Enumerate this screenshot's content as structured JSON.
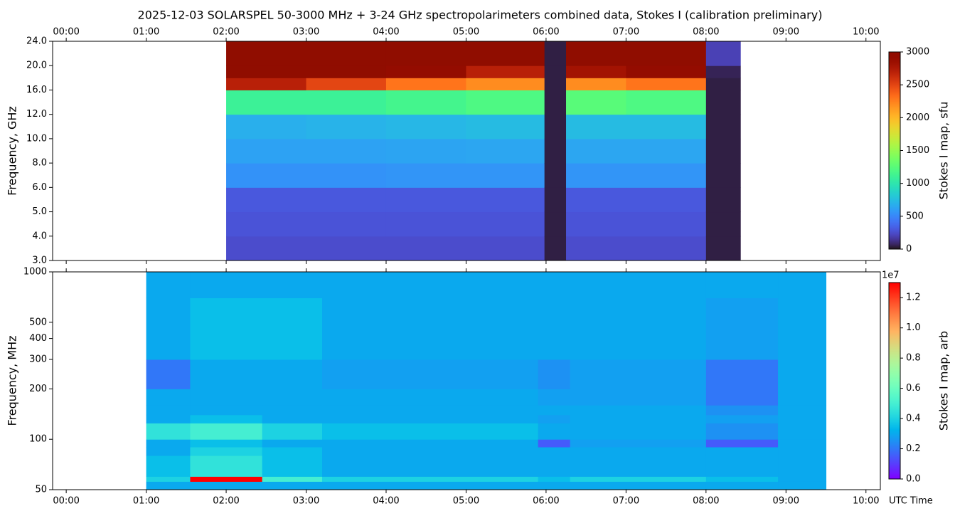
{
  "chart_data": [
    {
      "type": "heatmap",
      "title": "2025-12-03  SOLARSPEL  50-3000 MHz  +  3-24 GHz  spectropolarimeters combined data,  Stokes I  (calibration preliminary)",
      "ylabel": "Frequency, GHz",
      "colormap": "turbo",
      "yscale": "index",
      "xtick_position": "top",
      "x_edges": [
        2.0,
        3.0,
        4.0,
        5.0,
        5.98,
        6.25,
        7.0,
        8.0,
        8.43
      ],
      "y_edges": [
        3,
        4,
        5,
        6,
        8,
        10,
        12,
        16,
        18,
        20,
        24
      ],
      "values": [
        [
          250,
          280,
          300,
          550,
          620,
          680,
          1100,
          2700,
          3000,
          3000
        ],
        [
          250,
          280,
          300,
          550,
          620,
          700,
          1100,
          2500,
          3000,
          3000
        ],
        [
          250,
          280,
          300,
          560,
          630,
          720,
          1150,
          2300,
          2900,
          3000
        ],
        [
          250,
          280,
          300,
          560,
          640,
          740,
          1200,
          2200,
          2700,
          3000
        ],
        [
          40,
          40,
          40,
          40,
          40,
          40,
          40,
          40,
          40,
          40
        ],
        [
          250,
          280,
          300,
          560,
          640,
          740,
          1250,
          2200,
          2800,
          3000
        ],
        [
          250,
          280,
          300,
          560,
          640,
          740,
          1200,
          2300,
          2900,
          3000
        ],
        [
          40,
          40,
          40,
          40,
          40,
          40,
          40,
          40,
          60,
          200
        ]
      ],
      "xlim": [
        -0.17,
        10.18
      ],
      "xticks": [
        {
          "value": 0,
          "label": "00:00"
        },
        {
          "value": 1,
          "label": "01:00"
        },
        {
          "value": 2,
          "label": "02:00"
        },
        {
          "value": 3,
          "label": "03:00"
        },
        {
          "value": 4,
          "label": "04:00"
        },
        {
          "value": 5,
          "label": "05:00"
        },
        {
          "value": 6,
          "label": "06:00"
        },
        {
          "value": 7,
          "label": "07:00"
        },
        {
          "value": 8,
          "label": "08:00"
        },
        {
          "value": 9,
          "label": "09:00"
        },
        {
          "value": 10,
          "label": "10:00"
        }
      ],
      "ylim": [
        3,
        24
      ],
      "yticks": [
        {
          "value": 3,
          "label": "3.0"
        },
        {
          "value": 4,
          "label": "4.0"
        },
        {
          "value": 5,
          "label": "5.0"
        },
        {
          "value": 6,
          "label": "6.0"
        },
        {
          "value": 8,
          "label": "8.0"
        },
        {
          "value": 10,
          "label": "10.0"
        },
        {
          "value": 12,
          "label": "12.0"
        },
        {
          "value": 16,
          "label": "16.0"
        },
        {
          "value": 20,
          "label": "20.0"
        },
        {
          "value": 24,
          "label": "24.0"
        }
      ],
      "colorbar": {
        "label": "Stokes I map, sfu",
        "lim": [
          0,
          3000
        ],
        "ticks": [
          0,
          500,
          1000,
          1500,
          2000,
          2500,
          3000
        ]
      }
    },
    {
      "type": "heatmap",
      "ylabel": "Frequency, MHz",
      "xlabel": "UTC Time",
      "colormap": "rainbow",
      "yscale": "log",
      "xtick_position": "bottom",
      "x_edges": [
        1.0,
        1.55,
        2.45,
        3.2,
        5.9,
        6.3,
        8.0,
        8.9,
        9.5
      ],
      "y_edges": [
        50,
        56,
        60,
        80,
        90,
        100,
        125,
        140,
        160,
        200,
        300,
        700,
        1000
      ],
      "values": [
        [
          0.3,
          0.4,
          0.35,
          0.3,
          0.3,
          0.45,
          0.3,
          0.3,
          0.3,
          0.2,
          0.3,
          0.3
        ],
        [
          0.3,
          1.3,
          0.45,
          0.4,
          0.35,
          0.5,
          0.35,
          0.3,
          0.3,
          0.3,
          0.35,
          0.3
        ],
        [
          0.3,
          0.5,
          0.35,
          0.35,
          0.3,
          0.4,
          0.3,
          0.3,
          0.3,
          0.3,
          0.35,
          0.3
        ],
        [
          0.3,
          0.4,
          0.3,
          0.3,
          0.3,
          0.35,
          0.3,
          0.3,
          0.3,
          0.28,
          0.3,
          0.3
        ],
        [
          0.3,
          0.35,
          0.3,
          0.3,
          0.15,
          0.3,
          0.28,
          0.3,
          0.28,
          0.25,
          0.3,
          0.3
        ],
        [
          0.3,
          0.4,
          0.3,
          0.3,
          0.28,
          0.3,
          0.3,
          0.3,
          0.28,
          0.28,
          0.3,
          0.3
        ],
        [
          0.3,
          0.35,
          0.3,
          0.3,
          0.15,
          0.25,
          0.28,
          0.25,
          0.2,
          0.2,
          0.28,
          0.3
        ],
        [
          0.3,
          0.3,
          0.3,
          0.3,
          0.3,
          0.3,
          0.3,
          0.3,
          0.3,
          0.3,
          0.3,
          0.3
        ]
      ],
      "xlim": [
        -0.17,
        10.18
      ],
      "xticks": [
        {
          "value": 0,
          "label": "00:00"
        },
        {
          "value": 1,
          "label": "01:00"
        },
        {
          "value": 2,
          "label": "02:00"
        },
        {
          "value": 3,
          "label": "03:00"
        },
        {
          "value": 4,
          "label": "04:00"
        },
        {
          "value": 5,
          "label": "05:00"
        },
        {
          "value": 6,
          "label": "06:00"
        },
        {
          "value": 7,
          "label": "07:00"
        },
        {
          "value": 8,
          "label": "08:00"
        },
        {
          "value": 9,
          "label": "09:00"
        },
        {
          "value": 10,
          "label": "10:00"
        }
      ],
      "ylim": [
        50,
        1000
      ],
      "yticks": [
        50,
        100,
        200,
        300,
        400,
        500,
        1000
      ],
      "colorbar": {
        "label": "Stokes I map, arb",
        "offset_label": "1e7",
        "lim": [
          0,
          1.3
        ],
        "ticks": [
          {
            "value": 0,
            "label": "0.0"
          },
          0.2,
          0.4,
          0.6,
          0.8,
          {
            "value": 1,
            "label": "1.0"
          },
          1.2
        ]
      }
    }
  ]
}
